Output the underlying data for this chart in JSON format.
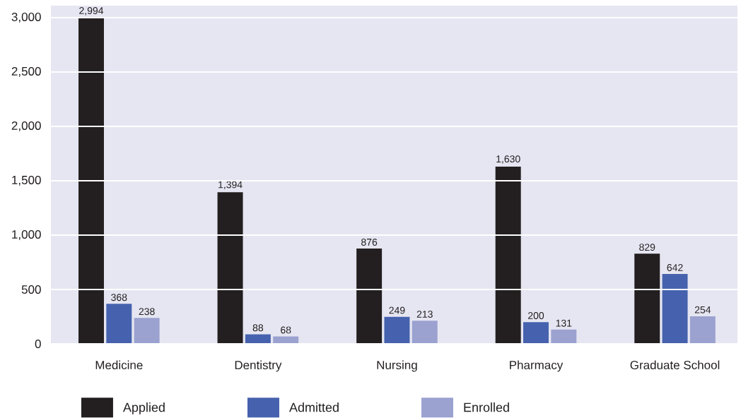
{
  "chart_data": {
    "type": "bar",
    "categories": [
      "Medicine",
      "Dentistry",
      "Nursing",
      "Pharmacy",
      "Graduate School"
    ],
    "series": [
      {
        "name": "Applied",
        "color": "#231f20",
        "values": [
          2994,
          1394,
          876,
          1630,
          829
        ],
        "value_labels": [
          "2,994",
          "1,394",
          "876",
          "1,630",
          "829"
        ]
      },
      {
        "name": "Admitted",
        "color": "#4662ae",
        "values": [
          368,
          88,
          249,
          200,
          642
        ],
        "value_labels": [
          "368",
          "88",
          "249",
          "200",
          "642"
        ]
      },
      {
        "name": "Enrolled",
        "color": "#9ba2d0",
        "values": [
          238,
          68,
          213,
          131,
          254
        ],
        "value_labels": [
          "238",
          "68",
          "213",
          "131",
          "254"
        ]
      }
    ],
    "ylim": [
      0,
      3110
    ],
    "yticks": [
      0,
      500,
      {
        "value": 1000,
        "label": "1,000"
      },
      {
        "value": 1500,
        "label": "1,500"
      },
      {
        "value": 2000,
        "label": "2,000"
      },
      {
        "value": 2500,
        "label": "2,500"
      },
      {
        "value": 3000,
        "label": "3,000"
      }
    ],
    "grid": "y",
    "legend": "bottom"
  }
}
